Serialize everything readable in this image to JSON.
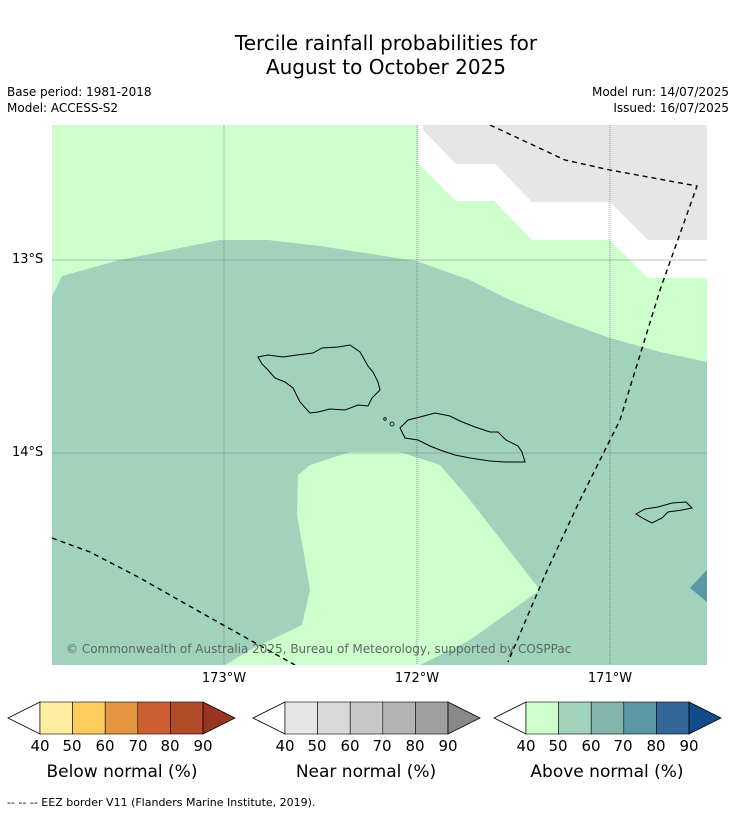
{
  "title_line1": "Tercile rainfall probabilities for",
  "title_line2": "August to October 2025",
  "meta": {
    "base_period": "Base period: 1981-2018",
    "model": "Model: ACCESS-S2",
    "model_run": "Model run: 14/07/2025",
    "issued": "Issued: 16/07/2025"
  },
  "map": {
    "lat_labels": [
      "13°S",
      "14°S"
    ],
    "lon_labels": [
      "173°W",
      "172°W",
      "171°W"
    ],
    "copyright": "© Commonwealth of Australia 2025, Bureau of Meteorology, supported by COSPPac",
    "colors": {
      "above_40_50": "#ccffcc",
      "above_50_60": "#a0d2bc",
      "above_70_80": "#5b97a5",
      "near_40_50": "#e6e6e6",
      "background": "#ffffff"
    }
  },
  "colorbars": [
    {
      "name": "below",
      "title": "Below normal (%)",
      "ticks": [
        "40",
        "50",
        "60",
        "70",
        "80",
        "90"
      ],
      "colors": [
        "#ffeda0",
        "#fecc5c",
        "#e3963f",
        "#cd6030",
        "#b24b28",
        "#993322"
      ]
    },
    {
      "name": "near",
      "title": "Near normal (%)",
      "ticks": [
        "40",
        "50",
        "60",
        "70",
        "80",
        "90"
      ],
      "colors": [
        "#e6e6e6",
        "#d9d9d9",
        "#c8c8c8",
        "#b3b3b3",
        "#a0a0a0",
        "#888888"
      ]
    },
    {
      "name": "above",
      "title": "Above normal (%)",
      "ticks": [
        "40",
        "50",
        "60",
        "70",
        "80",
        "90"
      ],
      "colors": [
        "#ccffcc",
        "#a0d2bc",
        "#82b5ab",
        "#5b97a5",
        "#336699",
        "#0f4c8a"
      ]
    }
  ],
  "footnote": "--  --  -- EEZ border V11 (Flanders Marine Institute, 2019)."
}
